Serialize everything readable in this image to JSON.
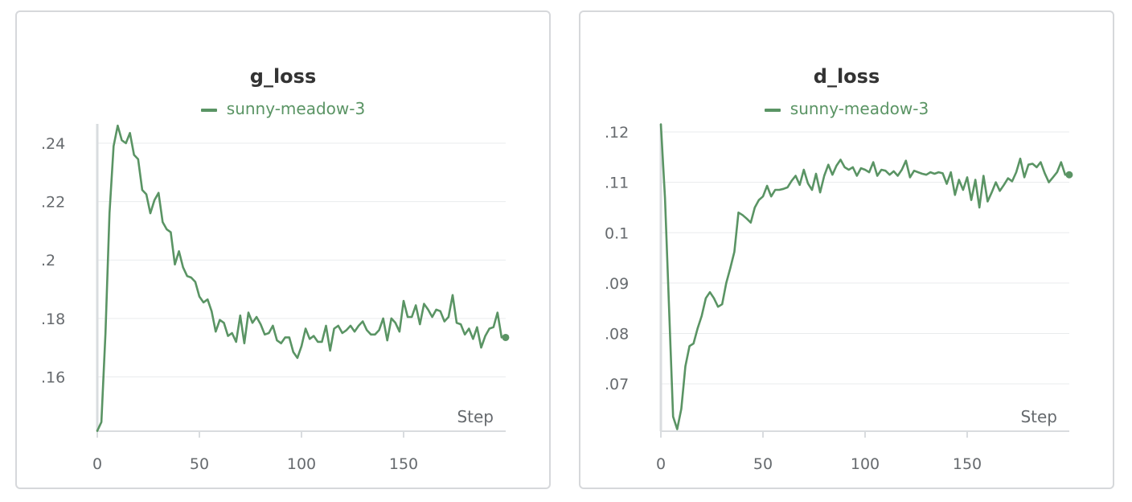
{
  "colors": {
    "series": "#5a9464",
    "grid": "#e9ebed",
    "axis": "#d9dcdf",
    "text": "#666a6e"
  },
  "chart_data": [
    {
      "type": "line",
      "title": "g_loss",
      "xlabel": "Step",
      "ylabel": "",
      "xlim": [
        0,
        200
      ],
      "ylim": [
        0.1414,
        0.2466
      ],
      "xticks": [
        0,
        50,
        100,
        150
      ],
      "xtick_labels": [
        "0",
        "50",
        "100",
        "150"
      ],
      "yticks": [
        0.16,
        0.18,
        0.2,
        0.22,
        0.24
      ],
      "ytick_labels": [
        ".16",
        ".18",
        ".2",
        ".22",
        ".24"
      ],
      "grid": true,
      "legend_position": "top-center",
      "series": [
        {
          "name": "sunny-meadow-3",
          "x": [
            0,
            2,
            4,
            6,
            8,
            10,
            12,
            14,
            16,
            18,
            20,
            22,
            24,
            26,
            28,
            30,
            32,
            34,
            36,
            38,
            40,
            42,
            44,
            46,
            48,
            50,
            52,
            54,
            56,
            58,
            60,
            62,
            64,
            66,
            68,
            70,
            72,
            74,
            76,
            78,
            80,
            82,
            84,
            86,
            88,
            90,
            92,
            94,
            96,
            98,
            100,
            102,
            104,
            106,
            108,
            110,
            112,
            114,
            116,
            118,
            120,
            122,
            124,
            126,
            128,
            130,
            132,
            134,
            136,
            138,
            140,
            142,
            144,
            146,
            148,
            150,
            152,
            154,
            156,
            158,
            160,
            162,
            164,
            166,
            168,
            170,
            172,
            174,
            176,
            178,
            180,
            182,
            184,
            186,
            188,
            190,
            192,
            194,
            196,
            198
          ],
          "y": [
            0.1415,
            0.1445,
            0.175,
            0.216,
            0.239,
            0.246,
            0.241,
            0.24,
            0.2435,
            0.236,
            0.2345,
            0.224,
            0.2225,
            0.216,
            0.2205,
            0.223,
            0.213,
            0.2105,
            0.2095,
            0.1985,
            0.203,
            0.1975,
            0.1945,
            0.194,
            0.1925,
            0.1875,
            0.1855,
            0.1865,
            0.1825,
            0.1755,
            0.1795,
            0.1785,
            0.174,
            0.175,
            0.172,
            0.181,
            0.1715,
            0.182,
            0.1785,
            0.1805,
            0.178,
            0.1745,
            0.175,
            0.1775,
            0.1725,
            0.1715,
            0.1735,
            0.1735,
            0.1685,
            0.1665,
            0.1705,
            0.1765,
            0.173,
            0.174,
            0.172,
            0.172,
            0.1775,
            0.169,
            0.1765,
            0.1775,
            0.175,
            0.176,
            0.1775,
            0.1755,
            0.1775,
            0.179,
            0.176,
            0.1745,
            0.1745,
            0.176,
            0.18,
            0.1725,
            0.18,
            0.1785,
            0.1755,
            0.186,
            0.1805,
            0.1805,
            0.1845,
            0.178,
            0.185,
            0.183,
            0.1805,
            0.183,
            0.1825,
            0.179,
            0.1805,
            0.188,
            0.1785,
            0.178,
            0.1745,
            0.1765,
            0.173,
            0.177,
            0.17,
            0.174,
            0.1765,
            0.177,
            0.182,
            0.1735
          ]
        }
      ]
    },
    {
      "type": "line",
      "title": "d_loss",
      "xlabel": "Step",
      "ylabel": "",
      "xlim": [
        0,
        200
      ],
      "ylim": [
        0.0606,
        0.1216
      ],
      "xticks": [
        0,
        50,
        100,
        150
      ],
      "xtick_labels": [
        "0",
        "50",
        "100",
        "150"
      ],
      "yticks": [
        0.07,
        0.08,
        0.09,
        0.1,
        0.11,
        0.12
      ],
      "ytick_labels": [
        ".07",
        ".08",
        ".09",
        "0.1",
        ".11",
        ".12"
      ],
      "grid": true,
      "legend_position": "top-center",
      "series": [
        {
          "name": "sunny-meadow-3",
          "x": [
            0,
            2,
            4,
            6,
            8,
            10,
            12,
            14,
            16,
            18,
            20,
            22,
            24,
            26,
            28,
            30,
            32,
            34,
            36,
            38,
            40,
            42,
            44,
            46,
            48,
            50,
            52,
            54,
            56,
            58,
            60,
            62,
            64,
            66,
            68,
            70,
            72,
            74,
            76,
            78,
            80,
            82,
            84,
            86,
            88,
            90,
            92,
            94,
            96,
            98,
            100,
            102,
            104,
            106,
            108,
            110,
            112,
            114,
            116,
            118,
            120,
            122,
            124,
            126,
            128,
            130,
            132,
            134,
            136,
            138,
            140,
            142,
            144,
            146,
            148,
            150,
            152,
            154,
            156,
            158,
            160,
            162,
            164,
            166,
            168,
            170,
            172,
            174,
            176,
            178,
            180,
            182,
            184,
            186,
            188,
            190,
            192,
            194,
            196,
            198
          ],
          "y": [
            0.1215,
            0.107,
            0.085,
            0.0635,
            0.061,
            0.065,
            0.0735,
            0.0775,
            0.078,
            0.081,
            0.0835,
            0.087,
            0.0882,
            0.087,
            0.0853,
            0.0858,
            0.09,
            0.093,
            0.0962,
            0.104,
            0.1035,
            0.1028,
            0.102,
            0.105,
            0.1065,
            0.1072,
            0.1093,
            0.1072,
            0.1085,
            0.1085,
            0.1087,
            0.109,
            0.1103,
            0.1113,
            0.1095,
            0.1125,
            0.1098,
            0.1085,
            0.1117,
            0.108,
            0.1113,
            0.1135,
            0.1115,
            0.1133,
            0.1145,
            0.113,
            0.1125,
            0.113,
            0.1113,
            0.1128,
            0.1125,
            0.112,
            0.114,
            0.1113,
            0.1125,
            0.1123,
            0.1115,
            0.1122,
            0.1113,
            0.1125,
            0.1143,
            0.111,
            0.1123,
            0.112,
            0.1117,
            0.1115,
            0.112,
            0.1117,
            0.112,
            0.1118,
            0.1097,
            0.112,
            0.1075,
            0.1105,
            0.1085,
            0.111,
            0.1065,
            0.1105,
            0.105,
            0.1113,
            0.1062,
            0.108,
            0.11,
            0.1083,
            0.1095,
            0.1108,
            0.1102,
            0.112,
            0.1147,
            0.111,
            0.1135,
            0.1137,
            0.113,
            0.114,
            0.1118,
            0.11,
            0.111,
            0.112,
            0.114,
            0.1115
          ]
        }
      ]
    }
  ]
}
